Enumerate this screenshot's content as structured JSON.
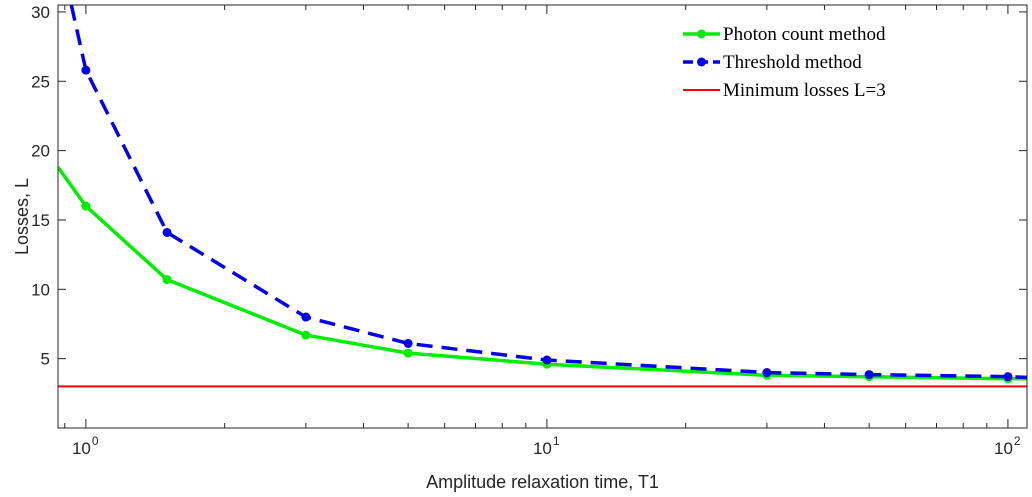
{
  "chart_data": {
    "type": "line",
    "xscale": "log",
    "xlabel": "Amplitude relaxation time, T1",
    "ylabel": "Losses, L",
    "xlim": [
      0.87,
      110
    ],
    "ylim": [
      0,
      30.5
    ],
    "x_ticks": [
      1,
      10,
      100
    ],
    "x_tick_labels": [
      "10",
      "10",
      "10"
    ],
    "x_tick_exponents": [
      "0",
      "1",
      "2"
    ],
    "y_ticks": [
      5,
      10,
      15,
      20,
      25,
      30
    ],
    "y_tick_labels": [
      "5",
      "10",
      "15",
      "20",
      "25",
      "30"
    ],
    "grid": false,
    "legend_position": "top-right",
    "series": [
      {
        "name": "Photon count method",
        "style": "solid",
        "color": "#00ee00",
        "marker_x": [
          1,
          1.5,
          3,
          5,
          10,
          30,
          50,
          100
        ],
        "marker_y": [
          16.0,
          10.7,
          6.7,
          5.4,
          4.6,
          3.8,
          3.7,
          3.55
        ],
        "x": [
          0.87,
          1,
          1.5,
          3,
          5,
          10,
          30,
          50,
          100,
          110
        ],
        "y": [
          18.8,
          16.0,
          10.7,
          6.7,
          5.4,
          4.6,
          3.8,
          3.7,
          3.55,
          3.55
        ]
      },
      {
        "name": "Threshold method",
        "style": "dashed",
        "color": "#0000ee",
        "marker_x": [
          1,
          1.5,
          3,
          5,
          10,
          30,
          50,
          100
        ],
        "marker_y": [
          25.8,
          14.1,
          8.0,
          6.1,
          4.9,
          4.0,
          3.85,
          3.7
        ],
        "x": [
          0.93,
          1,
          1.5,
          3,
          5,
          10,
          30,
          50,
          100,
          110
        ],
        "y": [
          30.5,
          25.8,
          14.1,
          8.0,
          6.1,
          4.9,
          4.0,
          3.85,
          3.7,
          3.65
        ]
      },
      {
        "name": "Minimum losses L=3",
        "style": "solid",
        "color": "#ff0000",
        "marker_x": [],
        "marker_y": [],
        "x": [
          0.87,
          110
        ],
        "y": [
          3,
          3
        ]
      }
    ]
  }
}
